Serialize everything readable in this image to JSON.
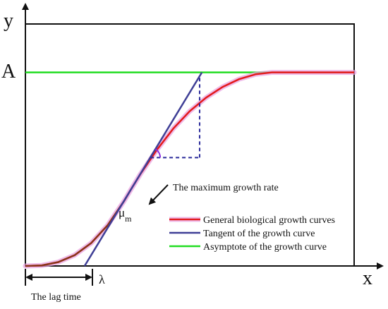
{
  "chart_data": {
    "type": "line",
    "title": "",
    "xlabel": "x",
    "ylabel": "y",
    "y_marker_label": "A",
    "lag_marker_label": "λ",
    "lag_time_label": "The lag time",
    "slope_label": "μ",
    "slope_label_sub": "m",
    "annotation": "The maximum growth rate",
    "xlim": [
      0,
      10
    ],
    "ylim": [
      0,
      1.25
    ],
    "grid": false,
    "legend_position": "bottom-right",
    "asymptote": 1.0,
    "lag_time": 1.8,
    "max_rate": 0.28,
    "inflection": {
      "x": 3.2,
      "y": 0.392
    },
    "series": [
      {
        "name": "General biological growth curves",
        "color": "#e31a1c",
        "shadow_color": "#e8a0e0",
        "x": [
          0.0,
          0.5,
          1.0,
          1.5,
          2.0,
          2.5,
          3.0,
          3.2,
          3.5,
          4.0,
          4.5,
          5.0,
          5.5,
          6.0,
          6.5,
          7.0,
          7.5,
          8.0,
          9.0,
          10.0
        ],
        "y": [
          0.0,
          0.003,
          0.02,
          0.056,
          0.118,
          0.21,
          0.335,
          0.392,
          0.475,
          0.6,
          0.71,
          0.8,
          0.87,
          0.925,
          0.965,
          0.99,
          1.0,
          1.0,
          1.0,
          1.0
        ]
      },
      {
        "name": "Tangent of the growth curve",
        "color": "#3f3f96",
        "x": [
          1.8,
          5.37
        ],
        "y": [
          0.0,
          1.0
        ]
      },
      {
        "name": "Asymptote of the growth curve",
        "color": "#22dd22",
        "x": [
          0.0,
          10.0
        ],
        "y": [
          1.0,
          1.0
        ]
      }
    ]
  }
}
